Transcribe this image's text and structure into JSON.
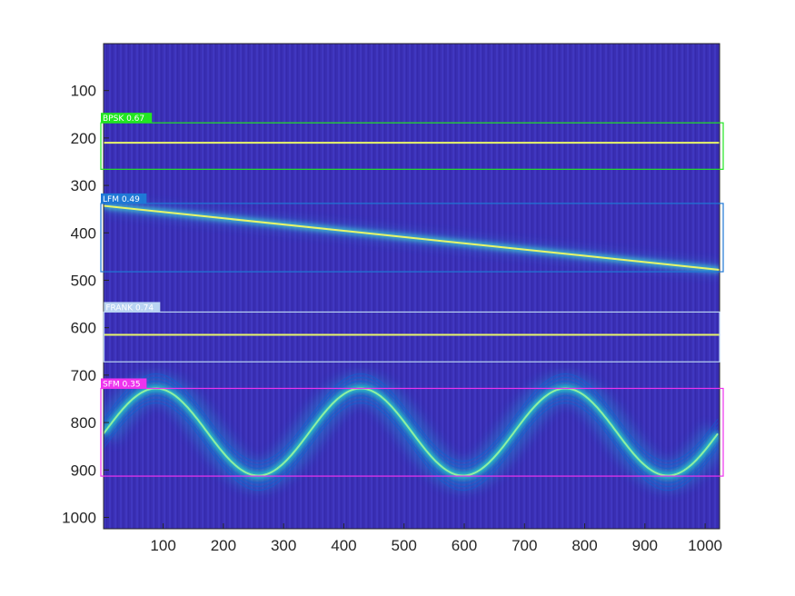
{
  "chart_data": {
    "type": "heatmap",
    "title": "",
    "xlabel": "",
    "ylabel": "",
    "xlim": [
      1,
      1024
    ],
    "ylim": [
      1,
      1024
    ],
    "y_reversed": true,
    "xticks": [
      100,
      200,
      300,
      400,
      500,
      600,
      700,
      800,
      900,
      1000
    ],
    "yticks": [
      100,
      200,
      300,
      400,
      500,
      600,
      700,
      800,
      900,
      1000
    ],
    "colormap": "parula",
    "background_color": "#3a2fb3",
    "detections": [
      {
        "label": "BPSK 0.67",
        "color": "#22e622",
        "x": [
          1,
          1024
        ],
        "y": [
          168,
          266
        ]
      },
      {
        "label": "LFM 0.49",
        "color": "#1f78d6",
        "x": [
          1,
          1024
        ],
        "y": [
          338,
          482
        ]
      },
      {
        "label": "FRANK 0.74",
        "color": "#b9d3f2",
        "x": [
          6,
          1018
        ],
        "y": [
          567,
          672
        ]
      },
      {
        "label": "SFM 0.35",
        "color": "#ee33ee",
        "x": [
          1,
          1024
        ],
        "y": [
          728,
          913
        ]
      }
    ],
    "signals": [
      {
        "name": "BPSK",
        "kind": "constant",
        "y": 210
      },
      {
        "name": "LFM",
        "kind": "linear",
        "x": [
          1,
          1024
        ],
        "y": [
          343,
          478
        ]
      },
      {
        "name": "FRANK",
        "kind": "constant",
        "y": 615
      },
      {
        "name": "SFM",
        "kind": "sinusoid",
        "center": 820,
        "amplitude": 92,
        "period": 340,
        "peaks_at_x": [
          88,
          428,
          768
        ]
      }
    ]
  }
}
